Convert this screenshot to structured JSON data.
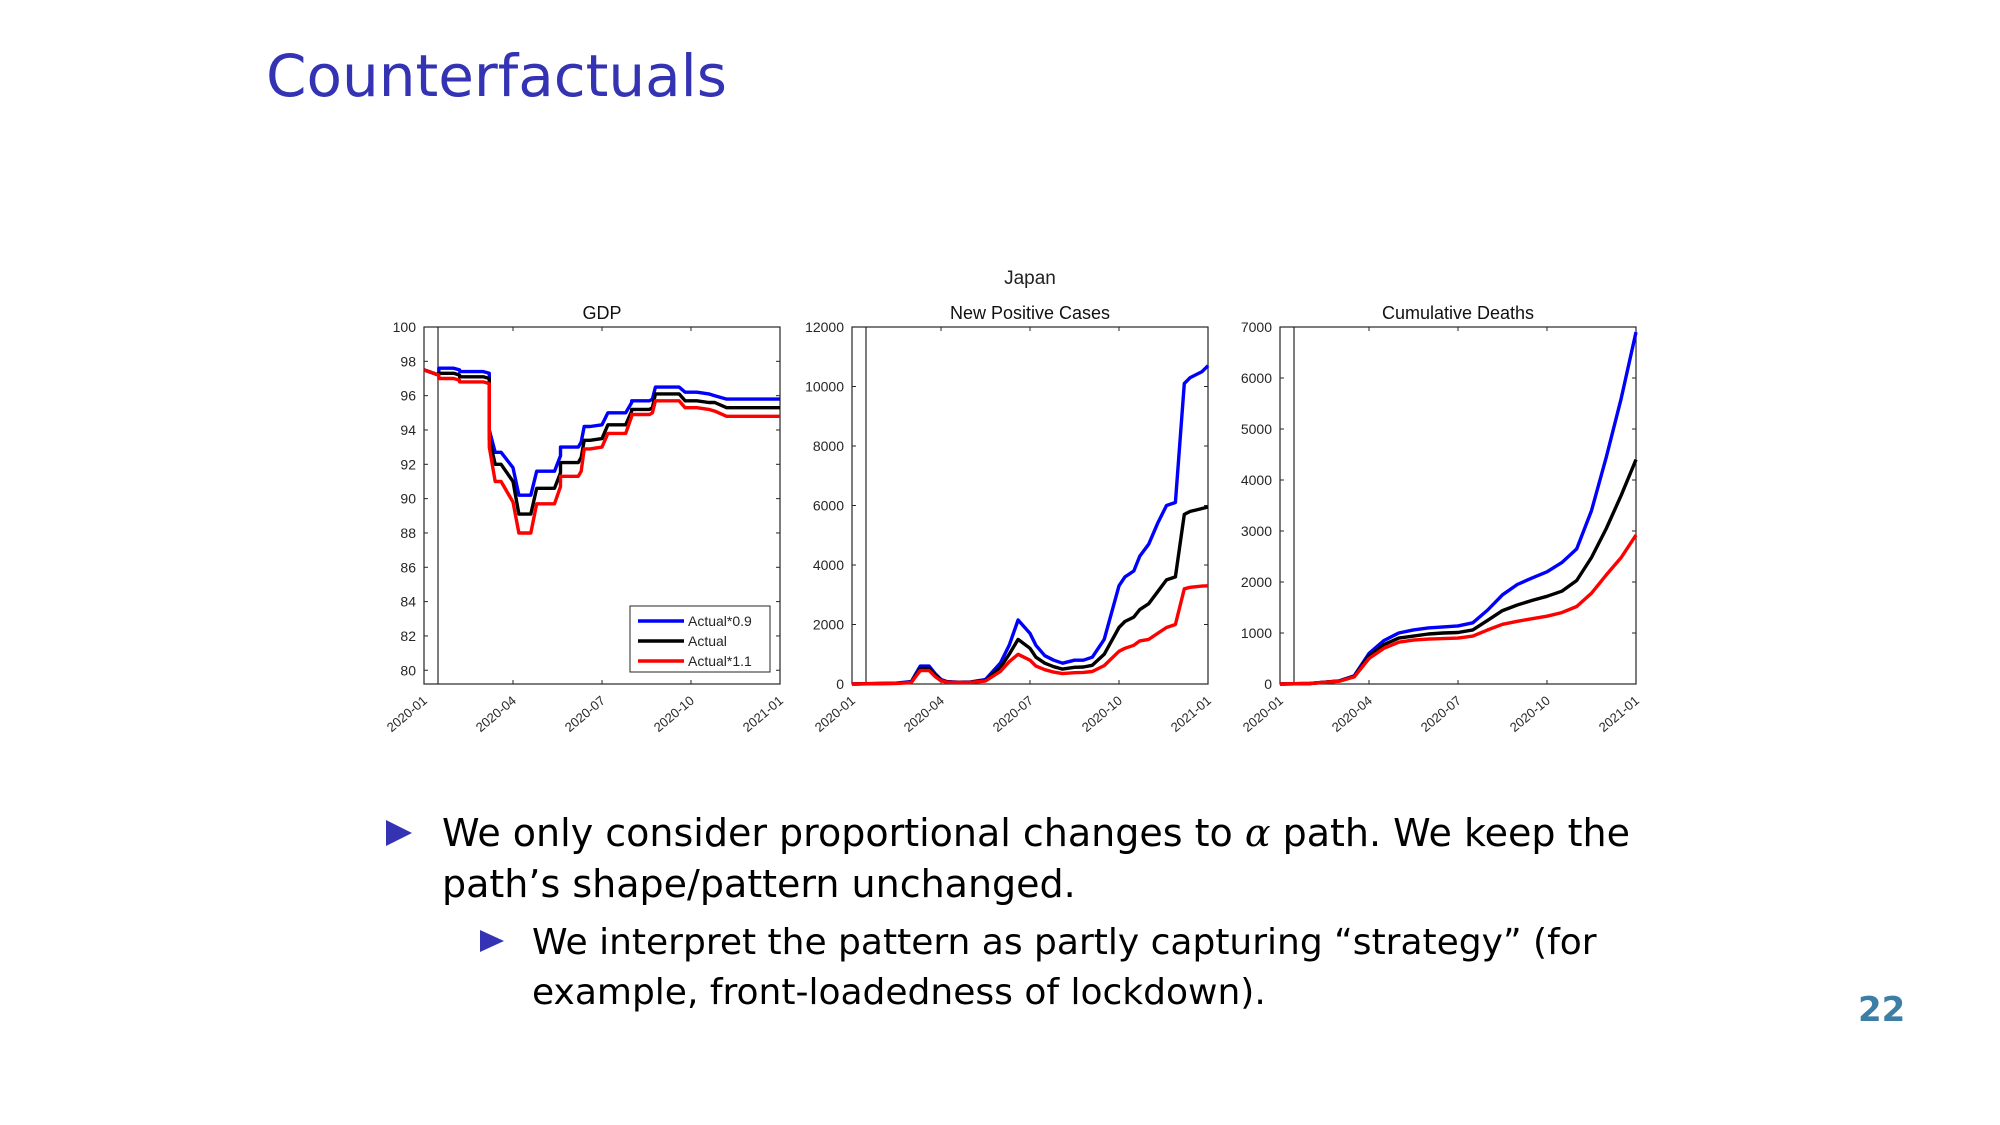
{
  "slide": {
    "title": "Counterfactuals",
    "page_number": "22",
    "bullet1_pre": "We only consider proportional changes to ",
    "bullet1_symbol": "α",
    "bullet1_post": " path.  We keep the path’s shape/pattern unchanged.",
    "bullet2": "We interpret the pattern as partly capturing “strategy” (for example, front-loadedness of lockdown)."
  },
  "colors": {
    "title": "#3333b3",
    "bullet": "#3333b3",
    "page_number": "#3d7ea6"
  },
  "figure_title": "Japan",
  "chart_data": [
    {
      "type": "line",
      "title": "GDP",
      "x_ticks": [
        "2020-01",
        "2020-04",
        "2020-07",
        "2020-10",
        "2021-01"
      ],
      "y_ticks": [
        "80",
        "82",
        "84",
        "86",
        "88",
        "90",
        "92",
        "94",
        "96",
        "98",
        "100"
      ],
      "ylim": [
        79.2,
        100
      ],
      "x_unit": "months since 2020-01",
      "legend": {
        "placement": "bottom-right",
        "entries": [
          "Actual*0.9",
          "Actual",
          "Actual*1.1"
        ]
      },
      "series": [
        {
          "name": "Actual*0.9",
          "color": "#0000ff",
          "x": [
            0,
            0.5,
            0.5,
            1,
            1.2,
            1.2,
            2,
            2.2,
            2.2,
            2.4,
            2.6,
            2.6,
            3.0,
            3.2,
            3.2,
            3.6,
            3.8,
            3.8,
            4.4,
            4.6,
            4.6,
            5.2,
            5.3,
            5.4,
            5.6,
            5.6,
            6.0,
            6.2,
            6.2,
            6.8,
            7.0,
            7.0,
            7.6,
            7.7,
            7.8,
            8.4,
            8.6,
            8.8,
            9.1,
            9.2,
            9.6,
            9.8,
            10.2,
            10.4,
            10.6,
            11.0,
            11.4,
            11.6,
            12.0
          ],
          "values": [
            97.5,
            97.2,
            97.6,
            97.6,
            97.5,
            97.4,
            97.4,
            97.3,
            94.0,
            92.7,
            92.7,
            92.7,
            91.8,
            90.2,
            90.2,
            90.2,
            91.6,
            91.6,
            91.6,
            92.5,
            93.0,
            93.0,
            93.3,
            94.2,
            94.2,
            94.2,
            94.3,
            95.0,
            95.0,
            95.0,
            95.6,
            95.7,
            95.7,
            95.8,
            96.5,
            96.5,
            96.5,
            96.2,
            96.2,
            96.2,
            96.1,
            96.0,
            95.8,
            95.8,
            95.8,
            95.8,
            95.8,
            95.8,
            95.8
          ]
        },
        {
          "name": "Actual",
          "color": "#000000",
          "x": [
            0,
            0.5,
            0.5,
            1,
            1.2,
            1.2,
            2,
            2.2,
            2.2,
            2.4,
            2.6,
            2.6,
            3.0,
            3.2,
            3.2,
            3.6,
            3.8,
            3.8,
            4.4,
            4.6,
            4.6,
            5.2,
            5.3,
            5.4,
            5.6,
            5.6,
            6.0,
            6.2,
            6.2,
            6.8,
            7.0,
            7.0,
            7.6,
            7.7,
            7.8,
            8.4,
            8.6,
            8.8,
            9.1,
            9.2,
            9.6,
            9.8,
            10.2,
            10.4,
            10.6,
            11.0,
            11.4,
            11.6,
            12.0
          ],
          "values": [
            97.5,
            97.2,
            97.3,
            97.3,
            97.2,
            97.1,
            97.1,
            97.0,
            93.5,
            92.0,
            92.0,
            92.0,
            91.0,
            89.1,
            89.1,
            89.1,
            90.6,
            90.6,
            90.6,
            91.5,
            92.1,
            92.1,
            92.4,
            93.4,
            93.4,
            93.4,
            93.5,
            94.3,
            94.3,
            94.3,
            95.1,
            95.2,
            95.2,
            95.3,
            96.1,
            96.1,
            96.1,
            95.7,
            95.7,
            95.7,
            95.6,
            95.6,
            95.3,
            95.3,
            95.3,
            95.3,
            95.3,
            95.3,
            95.3
          ]
        },
        {
          "name": "Actual*1.1",
          "color": "#ff0000",
          "x": [
            0,
            0.5,
            0.5,
            1,
            1.2,
            1.2,
            2,
            2.2,
            2.2,
            2.4,
            2.6,
            2.6,
            3.0,
            3.2,
            3.2,
            3.6,
            3.8,
            3.8,
            4.4,
            4.6,
            4.6,
            5.2,
            5.3,
            5.4,
            5.6,
            5.6,
            6.0,
            6.2,
            6.2,
            6.8,
            7.0,
            7.0,
            7.6,
            7.7,
            7.8,
            8.4,
            8.6,
            8.8,
            9.1,
            9.2,
            9.6,
            9.8,
            10.2,
            10.4,
            10.6,
            11.0,
            11.4,
            11.6,
            12.0
          ],
          "values": [
            97.5,
            97.2,
            97.0,
            97.0,
            96.9,
            96.8,
            96.8,
            96.7,
            93.0,
            91.0,
            91.0,
            91.0,
            89.8,
            88.0,
            88.0,
            88.0,
            89.7,
            89.7,
            89.7,
            90.7,
            91.3,
            91.3,
            91.6,
            92.9,
            92.9,
            92.9,
            93.0,
            93.8,
            93.8,
            93.8,
            94.8,
            94.9,
            94.9,
            95.0,
            95.7,
            95.7,
            95.7,
            95.3,
            95.3,
            95.3,
            95.2,
            95.1,
            94.8,
            94.8,
            94.8,
            94.8,
            94.8,
            94.8,
            94.8
          ]
        }
      ]
    },
    {
      "type": "line",
      "title": "New Positive Cases",
      "x_ticks": [
        "2020-01",
        "2020-04",
        "2020-07",
        "2020-10",
        "2021-01"
      ],
      "y_ticks": [
        "0",
        "2000",
        "4000",
        "6000",
        "8000",
        "10000",
        "12000"
      ],
      "ylim": [
        0,
        12000
      ],
      "x_unit": "months since 2020-01",
      "series": [
        {
          "name": "Actual*0.9",
          "color": "#0000ff",
          "x": [
            0,
            1.5,
            2.0,
            2.3,
            2.6,
            2.8,
            3.0,
            3.2,
            3.6,
            4.0,
            4.5,
            5.0,
            5.3,
            5.6,
            6.0,
            6.2,
            6.5,
            6.8,
            7.1,
            7.5,
            7.8,
            8.1,
            8.5,
            9.0,
            9.2,
            9.5,
            9.7,
            10.0,
            10.3,
            10.6,
            10.9,
            11.2,
            11.4,
            11.6,
            11.8,
            12.0
          ],
          "values": [
            0,
            30,
            80,
            600,
            600,
            350,
            150,
            80,
            60,
            70,
            150,
            700,
            1300,
            2150,
            1700,
            1300,
            950,
            800,
            700,
            800,
            800,
            900,
            1500,
            3300,
            3600,
            3800,
            4300,
            4700,
            5400,
            6000,
            6100,
            10100,
            10300,
            10400,
            10500,
            10700
          ]
        },
        {
          "name": "Actual",
          "color": "#000000",
          "x": [
            0,
            1.5,
            2.0,
            2.3,
            2.6,
            2.8,
            3.0,
            3.2,
            3.6,
            4.0,
            4.5,
            5.0,
            5.3,
            5.6,
            6.0,
            6.2,
            6.5,
            6.8,
            7.1,
            7.5,
            7.8,
            8.1,
            8.5,
            9.0,
            9.2,
            9.5,
            9.7,
            10.0,
            10.3,
            10.6,
            10.9,
            11.2,
            11.4,
            11.6,
            11.8,
            12.0
          ],
          "values": [
            0,
            25,
            60,
            520,
            520,
            300,
            130,
            70,
            55,
            60,
            120,
            550,
            1000,
            1500,
            1200,
            900,
            700,
            580,
            500,
            560,
            570,
            630,
            1000,
            1900,
            2100,
            2250,
            2500,
            2700,
            3100,
            3500,
            3600,
            5700,
            5800,
            5850,
            5900,
            5950
          ]
        },
        {
          "name": "Actual*1.1",
          "color": "#ff0000",
          "x": [
            0,
            1.5,
            2.0,
            2.3,
            2.6,
            2.8,
            3.0,
            3.2,
            3.6,
            4.0,
            4.5,
            5.0,
            5.3,
            5.6,
            6.0,
            6.2,
            6.5,
            6.8,
            7.1,
            7.5,
            7.8,
            8.1,
            8.5,
            9.0,
            9.2,
            9.5,
            9.7,
            10.0,
            10.3,
            10.6,
            10.9,
            11.2,
            11.4,
            11.6,
            11.8,
            12.0
          ],
          "values": [
            0,
            20,
            50,
            450,
            450,
            250,
            110,
            60,
            50,
            55,
            100,
            420,
            750,
            1000,
            800,
            600,
            480,
            400,
            350,
            380,
            390,
            420,
            620,
            1100,
            1200,
            1300,
            1450,
            1500,
            1700,
            1900,
            2000,
            3200,
            3250,
            3270,
            3290,
            3300
          ]
        }
      ]
    },
    {
      "type": "line",
      "title": "Cumulative Deaths",
      "x_ticks": [
        "2020-01",
        "2020-04",
        "2020-07",
        "2020-10",
        "2021-01"
      ],
      "y_ticks": [
        "0",
        "1000",
        "2000",
        "3000",
        "4000",
        "5000",
        "6000",
        "7000"
      ],
      "ylim": [
        0,
        7000
      ],
      "x_unit": "months since 2020-01",
      "series": [
        {
          "name": "Actual*0.9",
          "color": "#0000ff",
          "x": [
            0,
            1.0,
            2.0,
            2.5,
            3.0,
            3.5,
            4.0,
            4.5,
            5.0,
            5.5,
            6.0,
            6.5,
            7.0,
            7.5,
            8.0,
            8.5,
            9.0,
            9.5,
            10.0,
            10.5,
            11.0,
            11.5,
            12.0
          ],
          "values": [
            0,
            10,
            60,
            160,
            600,
            850,
            1000,
            1060,
            1100,
            1120,
            1140,
            1200,
            1450,
            1750,
            1950,
            2080,
            2200,
            2380,
            2650,
            3400,
            4450,
            5600,
            6900
          ]
        },
        {
          "name": "Actual",
          "color": "#000000",
          "x": [
            0,
            1.0,
            2.0,
            2.5,
            3.0,
            3.5,
            4.0,
            4.5,
            5.0,
            5.5,
            6.0,
            6.5,
            7.0,
            7.5,
            8.0,
            8.5,
            9.0,
            9.5,
            10.0,
            10.5,
            11.0,
            11.5,
            12.0
          ],
          "values": [
            0,
            10,
            60,
            150,
            550,
            770,
            900,
            940,
            980,
            1000,
            1010,
            1060,
            1250,
            1440,
            1550,
            1640,
            1720,
            1820,
            2030,
            2480,
            3050,
            3700,
            4400
          ]
        },
        {
          "name": "Actual*1.1",
          "color": "#ff0000",
          "x": [
            0,
            1.0,
            2.0,
            2.5,
            3.0,
            3.5,
            4.0,
            4.5,
            5.0,
            5.5,
            6.0,
            6.5,
            7.0,
            7.5,
            8.0,
            8.5,
            9.0,
            9.5,
            10.0,
            10.5,
            11.0,
            11.5,
            12.0
          ],
          "values": [
            0,
            10,
            55,
            140,
            500,
            700,
            820,
            860,
            880,
            890,
            900,
            940,
            1060,
            1170,
            1230,
            1280,
            1330,
            1400,
            1520,
            1780,
            2140,
            2480,
            2920
          ]
        }
      ]
    }
  ]
}
